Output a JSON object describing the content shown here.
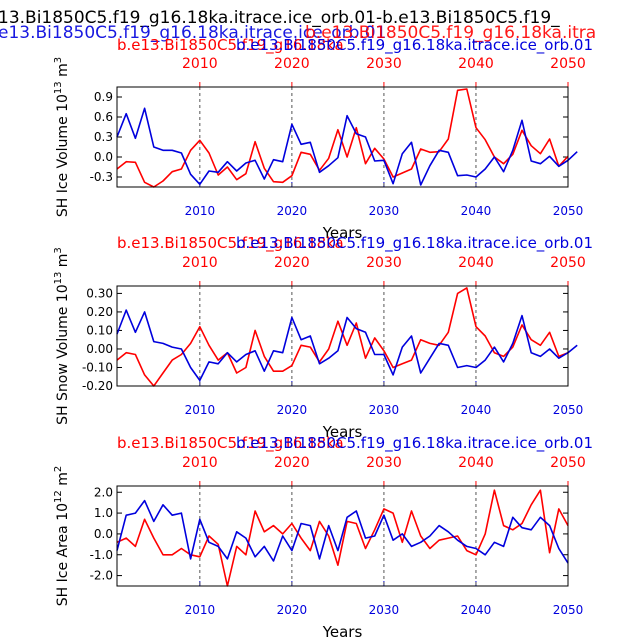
{
  "figure": {
    "title_black": "13.Bi1850C5.f19_g16.18ka.itrace.ice_orb.01-b.e13.Bi1850C5.f19_",
    "title_blue": "e13.Bi1850C5.f19_g16.18ka.itrace.ice_orb.01",
    "title_red": "b.e13.Bi1850C5.f19_g16.18ka.itra",
    "colors": {
      "red": "#ff0000",
      "blue": "#0000dd",
      "black": "#000000",
      "gray": "#555555"
    }
  },
  "chart_data": [
    {
      "type": "line",
      "red_title": "b.e13.Bi1850C5.f19_g16.18ka",
      "blue_title": "b.e13.Bi1850C5.f19_g16.18ka.itrace.ice_orb.01",
      "ylabel_main": "SH Ice Volume 10",
      "ylabel_exp": "13",
      "ylabel_unit": " m",
      "ylabel_unit_exp": "3",
      "xlabel": "Years",
      "xlim": [
        2001,
        2050
      ],
      "ylim": [
        -0.45,
        1.05
      ],
      "yticks": [
        0.9,
        0.6,
        0.3,
        0.0,
        -0.3
      ],
      "ytick_labels": [
        "0.9",
        "0.6",
        "0.3",
        "0.0",
        "-0.3"
      ],
      "xticks": [
        2010,
        2020,
        2030,
        2040,
        2050
      ],
      "xtick_labels": [
        "2010",
        "2020",
        "2030",
        "2040",
        "2050"
      ],
      "vlines": [
        2010,
        2020,
        2030,
        2040
      ],
      "series": [
        {
          "name": "red",
          "color": "#ff0000",
          "x_start": 2001,
          "values": [
            -0.18,
            -0.07,
            -0.08,
            -0.38,
            -0.45,
            -0.36,
            -0.22,
            -0.18,
            0.1,
            0.25,
            0.06,
            -0.27,
            -0.15,
            -0.34,
            -0.25,
            0.23,
            -0.17,
            -0.37,
            -0.38,
            -0.28,
            0.07,
            0.04,
            -0.2,
            -0.02,
            0.41,
            0.0,
            0.44,
            -0.1,
            0.13,
            -0.03,
            -0.3,
            -0.24,
            -0.18,
            0.12,
            0.07,
            0.08,
            0.27,
            1.0,
            1.02,
            0.44,
            0.26,
            0.0,
            -0.1,
            0.04,
            0.4,
            0.17,
            0.05,
            0.27,
            -0.14,
            0.01
          ]
        },
        {
          "name": "blue",
          "color": "#0000dd",
          "x_start": 2001,
          "values": [
            0.3,
            0.65,
            0.28,
            0.73,
            0.15,
            0.1,
            0.1,
            0.06,
            -0.26,
            -0.41,
            -0.21,
            -0.23,
            -0.07,
            -0.21,
            -0.09,
            -0.05,
            -0.33,
            -0.04,
            -0.07,
            0.49,
            0.19,
            0.22,
            -0.23,
            -0.13,
            -0.01,
            0.62,
            0.35,
            0.3,
            -0.06,
            -0.05,
            -0.4,
            0.05,
            0.22,
            -0.42,
            -0.13,
            0.1,
            0.07,
            -0.28,
            -0.27,
            -0.3,
            -0.18,
            0.0,
            -0.22,
            0.1,
            0.55,
            -0.06,
            -0.1,
            0.01,
            -0.14,
            -0.05,
            0.08
          ]
        }
      ]
    },
    {
      "type": "line",
      "red_title": "b.e13.Bi1850C5.f19_g16.18ka",
      "blue_title": "b.e13.Bi1850C5.f19_g16.18ka.itrace.ice_orb.01",
      "ylabel_main": "SH Snow Volume 10",
      "ylabel_exp": "13",
      "ylabel_unit": " m",
      "ylabel_unit_exp": "3",
      "xlabel": "Years",
      "xlim": [
        2001,
        2050
      ],
      "ylim": [
        -0.2,
        0.34
      ],
      "yticks": [
        0.3,
        0.2,
        0.1,
        0.0,
        -0.1,
        -0.2
      ],
      "ytick_labels": [
        "0.30",
        "0.20",
        "0.10",
        "0.00",
        "-0.10",
        "-0.20"
      ],
      "xticks": [
        2010,
        2020,
        2030,
        2040,
        2050
      ],
      "xtick_labels": [
        "2010",
        "2020",
        "2030",
        "2040",
        "2050"
      ],
      "vlines": [
        2010,
        2020,
        2030,
        2040
      ],
      "series": [
        {
          "name": "red",
          "color": "#ff0000",
          "x_start": 2001,
          "values": [
            -0.06,
            -0.02,
            -0.03,
            -0.14,
            -0.2,
            -0.13,
            -0.06,
            -0.03,
            0.03,
            0.12,
            0.02,
            -0.06,
            -0.02,
            -0.13,
            -0.1,
            0.1,
            -0.04,
            -0.12,
            -0.12,
            -0.09,
            0.02,
            0.01,
            -0.07,
            0.0,
            0.15,
            0.02,
            0.14,
            -0.05,
            0.06,
            -0.01,
            -0.1,
            -0.08,
            -0.06,
            0.05,
            0.03,
            0.02,
            0.09,
            0.3,
            0.33,
            0.12,
            0.07,
            -0.02,
            -0.04,
            0.01,
            0.13,
            0.05,
            0.02,
            0.09,
            -0.04,
            -0.02
          ]
        },
        {
          "name": "blue",
          "color": "#0000dd",
          "x_start": 2001,
          "values": [
            0.08,
            0.21,
            0.09,
            0.2,
            0.04,
            0.03,
            0.01,
            0.0,
            -0.1,
            -0.17,
            -0.07,
            -0.08,
            -0.02,
            -0.07,
            -0.03,
            -0.01,
            -0.12,
            -0.01,
            -0.02,
            0.17,
            0.05,
            0.07,
            -0.08,
            -0.05,
            -0.01,
            0.17,
            0.11,
            0.09,
            -0.03,
            -0.03,
            -0.14,
            0.01,
            0.07,
            -0.13,
            -0.05,
            0.03,
            0.02,
            -0.1,
            -0.09,
            -0.1,
            -0.06,
            0.01,
            -0.07,
            0.03,
            0.18,
            -0.02,
            -0.04,
            0.0,
            -0.05,
            -0.02,
            0.02
          ]
        }
      ]
    },
    {
      "type": "line",
      "red_title": "b.e13.Bi1850C5.f19_g16.18ka",
      "blue_title": "b.e13.Bi1850C5.f19_g16.18ka.itrace.ice_orb.01",
      "ylabel_main": "SH Ice Area 10",
      "ylabel_exp": "12",
      "ylabel_unit": " m",
      "ylabel_unit_exp": "2",
      "xlabel": "Years",
      "xlim": [
        2001,
        2050
      ],
      "ylim": [
        -2.5,
        2.3
      ],
      "yticks": [
        2.0,
        1.0,
        0.0,
        -1.0,
        -2.0
      ],
      "ytick_labels": [
        "2.0",
        "1.0",
        "0.0",
        "-1.0",
        "-2.0"
      ],
      "xticks": [
        2010,
        2020,
        2030,
        2040,
        2050
      ],
      "xtick_labels": [
        "2010",
        "2020",
        "2030",
        "2040",
        "2050"
      ],
      "vlines": [
        2010,
        2020,
        2030,
        2040
      ],
      "series": [
        {
          "name": "red",
          "color": "#ff0000",
          "x_start": 2001,
          "values": [
            -0.4,
            -0.2,
            -0.6,
            0.7,
            -0.2,
            -1.0,
            -1.0,
            -0.7,
            -1.0,
            -1.1,
            -0.1,
            -0.5,
            -2.5,
            -0.6,
            -1.0,
            1.1,
            0.1,
            0.4,
            0.0,
            0.5,
            -0.2,
            -0.8,
            0.6,
            -0.1,
            -1.5,
            0.6,
            0.5,
            -0.7,
            0.2,
            1.2,
            1.0,
            -0.4,
            1.1,
            -0.1,
            -0.7,
            -0.3,
            -0.2,
            -0.1,
            -0.8,
            -1.0,
            0.0,
            2.1,
            0.4,
            0.2,
            0.5,
            1.4,
            2.1,
            -0.9,
            1.2,
            0.4
          ]
        },
        {
          "name": "blue",
          "color": "#0000dd",
          "x_start": 2001,
          "values": [
            -0.8,
            0.9,
            1.0,
            1.6,
            0.6,
            1.4,
            0.9,
            1.0,
            -1.2,
            0.7,
            -0.4,
            -0.6,
            -1.2,
            0.1,
            -0.2,
            -1.1,
            -0.6,
            -1.3,
            -0.1,
            -0.8,
            0.5,
            0.4,
            -1.2,
            0.4,
            -0.8,
            0.8,
            1.1,
            -0.2,
            -0.1,
            0.9,
            -0.3,
            0.0,
            -0.6,
            -0.4,
            -0.1,
            0.4,
            0.1,
            -0.3,
            -0.6,
            -0.7,
            -1.0,
            -0.4,
            -0.6,
            0.8,
            0.3,
            0.2,
            0.8,
            0.4,
            -0.7,
            -1.4
          ]
        }
      ]
    }
  ]
}
